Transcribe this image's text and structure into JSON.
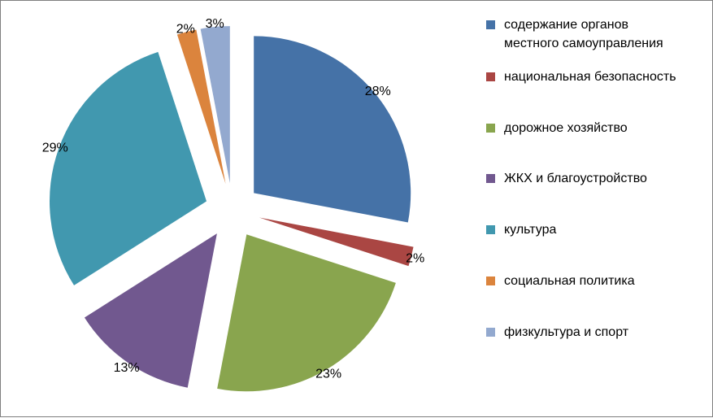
{
  "chart_data": {
    "type": "pie",
    "exploded": true,
    "legend_position": "right",
    "slices": [
      {
        "label": "содержание органов\nместного самоуправления",
        "value": 28,
        "display": "28%",
        "color": "#4572A7"
      },
      {
        "label": "национальная безопасность",
        "value": 2,
        "display": "2%",
        "color": "#AA4643"
      },
      {
        "label": "дорожное хозяйство",
        "value": 23,
        "display": "23%",
        "color": "#89A54E"
      },
      {
        "label": "ЖКХ и благоустройство",
        "value": 13,
        "display": "13%",
        "color": "#71588F"
      },
      {
        "label": "культура",
        "value": 29,
        "display": "29%",
        "color": "#4198AF"
      },
      {
        "label": "социальная политика",
        "value": 2,
        "display": "2%",
        "color": "#DB843D"
      },
      {
        "label": "физкультура и спорт",
        "value": 3,
        "display": "3%",
        "color": "#93A9CF"
      }
    ]
  }
}
